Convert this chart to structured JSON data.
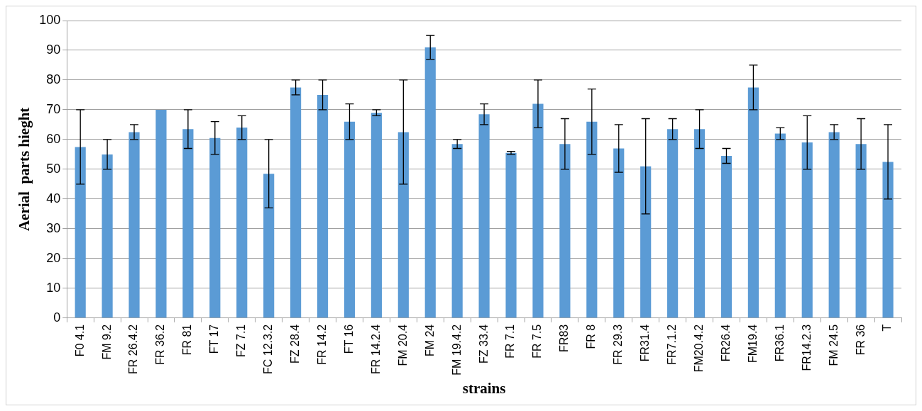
{
  "chart_data": {
    "type": "bar",
    "xlabel": "strains",
    "ylabel": "Aerial  parts hieght",
    "categories": [
      "F0 4.1",
      "FM 9.2",
      "FR 26.4.2",
      "FR 36.2",
      "FR 81",
      "FT 17",
      "FZ 7.1",
      "FC 12.3.2",
      "FZ 28.4",
      "FR 14.2",
      "FT 16",
      "FR 14.2.4",
      "FM 20.4",
      "FM 24",
      "FM 19.4.2",
      "FZ 33.4",
      "FR 7.1",
      "FR 7.5",
      "FR83",
      "FR 8",
      "FR 29.3",
      "FR31.4",
      "FR7.1.2",
      "FM20.4.2",
      "FR26.4",
      "FM19.4",
      "FR36.1",
      "FR14.2.3",
      "FM 24.5",
      "FR 36",
      "T"
    ],
    "values": [
      57.5,
      55,
      62.5,
      70,
      63.5,
      60.5,
      64,
      48.5,
      77.5,
      75,
      66,
      69,
      62.5,
      91,
      58.5,
      68.5,
      55.5,
      72,
      58.5,
      66,
      57,
      51,
      63.5,
      63.5,
      54.5,
      77.5,
      62,
      59,
      62.5,
      58.5,
      52.5
    ],
    "errors": [
      12.5,
      5,
      2.5,
      null,
      6.5,
      5.5,
      4,
      11.5,
      2.5,
      5,
      6,
      1,
      17.5,
      4,
      1.5,
      3.5,
      0.5,
      8,
      8.5,
      11,
      8,
      16,
      3.5,
      6.5,
      2.5,
      7.5,
      2,
      9,
      2.5,
      8.5,
      12.5
    ],
    "color": "#5b9bd5",
    "ylim": [
      0,
      100
    ],
    "yticks": [
      0,
      10,
      20,
      30,
      40,
      50,
      60,
      70,
      80,
      90,
      100
    ],
    "grid": "y"
  }
}
